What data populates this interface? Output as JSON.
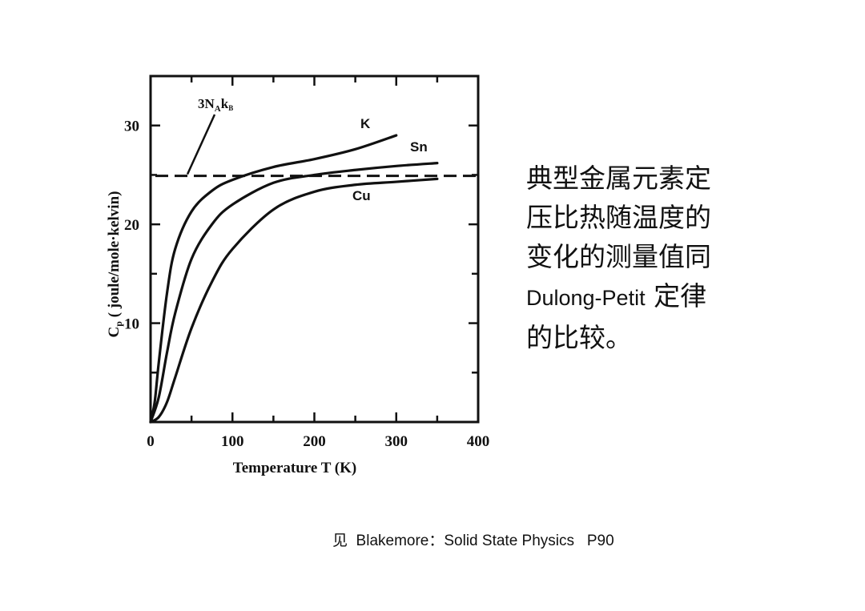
{
  "chart_data": {
    "type": "line",
    "xlabel": "Temperature  T  (K)",
    "ylabel": "C",
    "ylabel_sub": "p",
    "ylabel_rest": " ( joule/mole·kelvin)",
    "xlim": [
      0,
      400
    ],
    "ylim": [
      0,
      35
    ],
    "x_ticks": [
      0,
      100,
      200,
      300,
      400
    ],
    "y_ticks": [
      10,
      20,
      30
    ],
    "grid": false,
    "series": [
      {
        "name": "K",
        "x": [
          0,
          5,
          10,
          20,
          30,
          50,
          75,
          100,
          150,
          200,
          250,
          300
        ],
        "y": [
          0,
          2,
          6,
          13,
          17.5,
          21.3,
          23.4,
          24.5,
          25.8,
          26.6,
          27.6,
          29.0
        ]
      },
      {
        "name": "Sn",
        "x": [
          0,
          10,
          20,
          30,
          50,
          75,
          100,
          150,
          200,
          250,
          300,
          350
        ],
        "y": [
          0,
          2.5,
          7,
          11,
          16.5,
          20,
          22,
          24.2,
          25,
          25.5,
          25.9,
          26.2
        ]
      },
      {
        "name": "Cu",
        "x": [
          0,
          10,
          20,
          30,
          50,
          75,
          100,
          150,
          200,
          250,
          300,
          350
        ],
        "y": [
          0,
          0.5,
          2,
          4.5,
          9.5,
          14.2,
          17.5,
          21.5,
          23.3,
          24.0,
          24.3,
          24.6
        ]
      }
    ],
    "reference_line": {
      "label": "3N",
      "label_sub1": "A",
      "label_mid": "k",
      "label_sub2": "B",
      "y": 24.9
    }
  },
  "side_text": {
    "line1": "典型金属元素定",
    "line2": "压比热随温度的",
    "line3": "变化的测量值同",
    "line4_latin": "Dulong-Petit",
    "line4_cn": " 定律",
    "line5": "的比较。"
  },
  "citation": "见  Blakemore：Solid State Physics   P90"
}
